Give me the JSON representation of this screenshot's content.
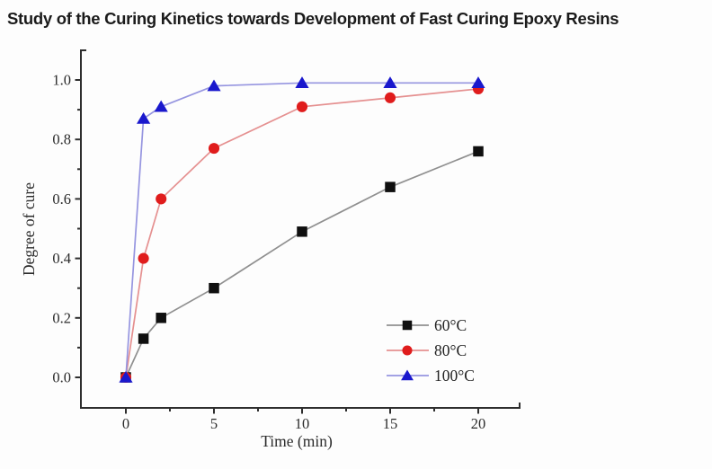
{
  "chart_data": {
    "type": "line",
    "title": "Study of the Curing Kinetics towards Development of Fast Curing Epoxy Resins",
    "xlabel": "Time (min)",
    "ylabel": "Degree of cure",
    "x": [
      0,
      1,
      2,
      5,
      10,
      15,
      20
    ],
    "series": [
      {
        "name": "60°C",
        "marker": "square",
        "marker_color": "#0f0f0f",
        "line_color": "#909090",
        "values": [
          0.0,
          0.13,
          0.2,
          0.3,
          0.49,
          0.64,
          0.76
        ]
      },
      {
        "name": "80°C",
        "marker": "circle",
        "marker_color": "#e01c1c",
        "line_color": "#e59090",
        "values": [
          0.0,
          0.4,
          0.6,
          0.77,
          0.91,
          0.94,
          0.97
        ]
      },
      {
        "name": "100°C",
        "marker": "triangle",
        "marker_color": "#1a18cd",
        "line_color": "#9695e0",
        "values": [
          0.0,
          0.87,
          0.91,
          0.98,
          0.99,
          0.99,
          0.99
        ]
      }
    ],
    "xlim": [
      -2.5,
      22.5
    ],
    "ylim": [
      -0.1,
      1.1
    ],
    "x_ticks": [
      0,
      5,
      10,
      15,
      20
    ],
    "x_tick_labels": [
      "0",
      "5",
      "10",
      "15",
      "20"
    ],
    "x_minor_ticks": [
      2.5,
      7.5,
      12.5,
      17.5,
      22.5
    ],
    "y_ticks": [
      0.0,
      0.2,
      0.4,
      0.6,
      0.8,
      1.0
    ],
    "y_tick_labels": [
      "0.0",
      "0.2",
      "0.4",
      "0.6",
      "0.8",
      "1.0"
    ],
    "y_minor_ticks": [
      0.1,
      0.3,
      0.5,
      0.7,
      0.9,
      1.1
    ],
    "grid": false,
    "legend": {
      "position": "inside-lower-right",
      "entries": [
        "60°C",
        "80°C",
        "100°C"
      ]
    },
    "axis_color": "#2e2e2e",
    "tick_label_color": "#2b2b2b"
  }
}
